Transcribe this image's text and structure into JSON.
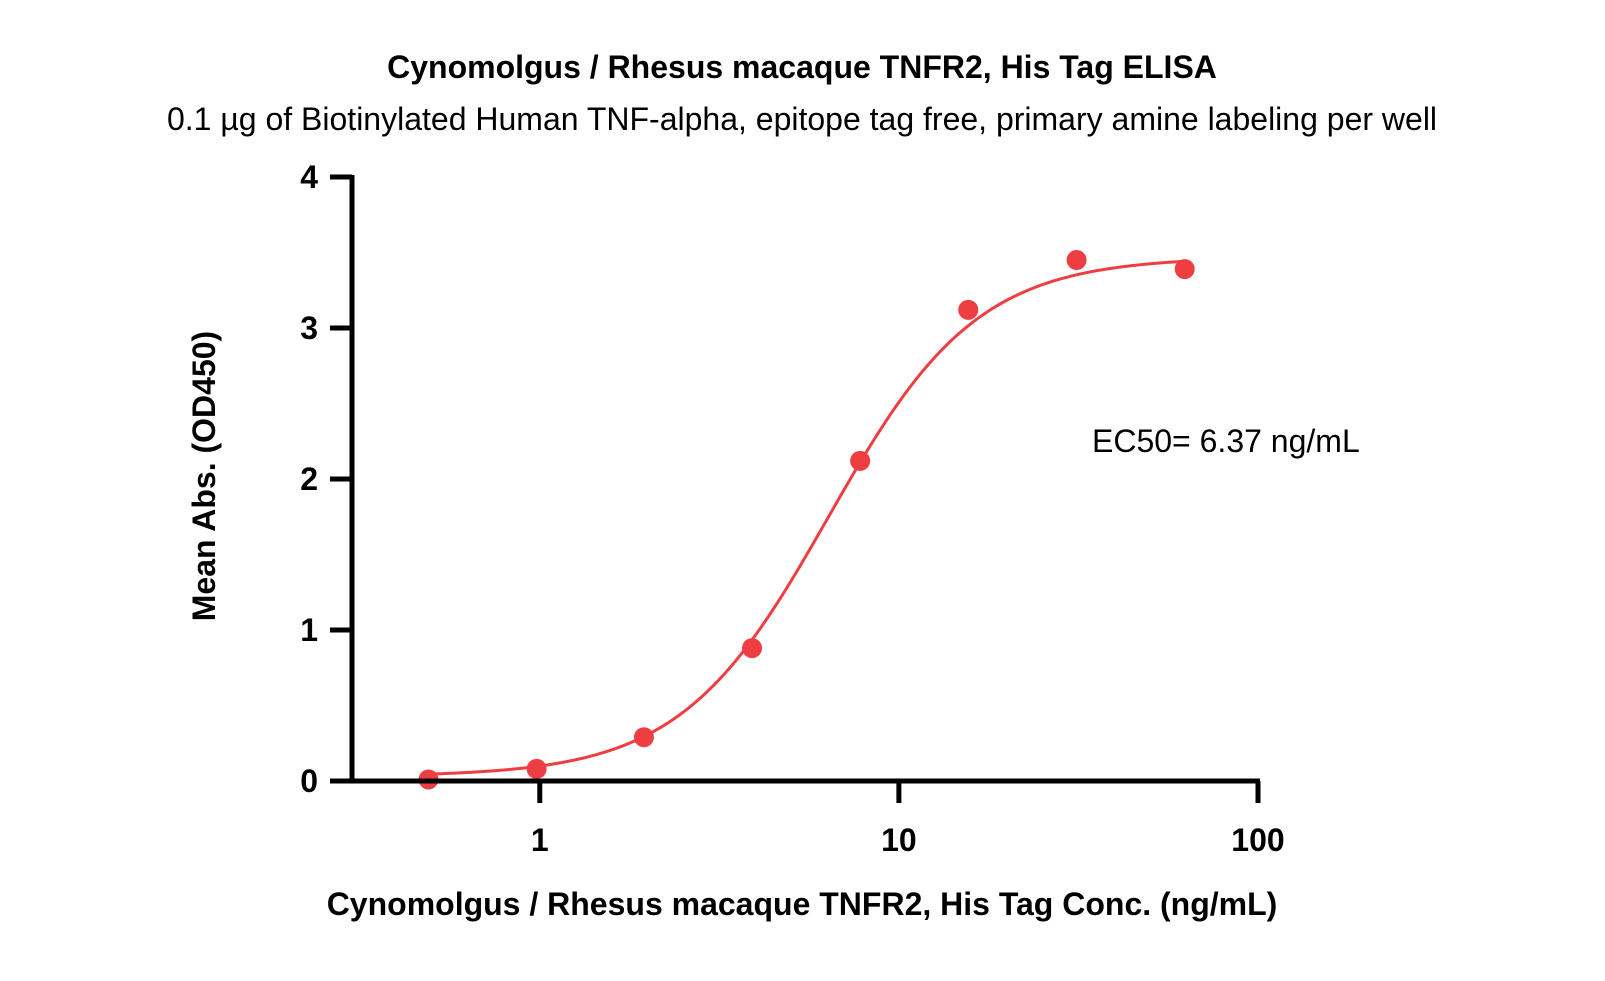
{
  "chart_data": {
    "type": "scatter",
    "title": "Cynomolgus / Rhesus macaque TNFR2, His Tag ELISA",
    "subtitle": "0.1 µg of Biotinylated Human TNF-alpha, epitope tag free, primary amine labeling per well",
    "xlabel": "Cynomolgus / Rhesus macaque TNFR2, His Tag Conc. (ng/mL)",
    "ylabel": "Mean Abs. (OD450)",
    "x_scale": "log",
    "xlim": [
      0.3,
      100
    ],
    "ylim": [
      0,
      4
    ],
    "x_ticks": [
      1,
      10,
      100
    ],
    "x_tick_labels": [
      "1",
      "10",
      "100"
    ],
    "y_ticks": [
      0,
      1,
      2,
      3,
      4
    ],
    "y_tick_labels": [
      "0",
      "1",
      "2",
      "3",
      "4"
    ],
    "grid": false,
    "legend": "none",
    "annotation": "EC50= 6.37 ng/mL",
    "color": "#ef3e42",
    "series": [
      {
        "x": [
          0.49,
          0.98,
          1.95,
          3.9,
          7.8,
          15.6,
          31.25,
          62.5
        ],
        "y": [
          0.01,
          0.08,
          0.29,
          0.88,
          2.12,
          3.12,
          3.45,
          3.39
        ]
      }
    ],
    "fit": {
      "model": "4PL",
      "bottom": 0.03,
      "top": 3.47,
      "ec50": 6.37,
      "hill": 2.1
    }
  }
}
